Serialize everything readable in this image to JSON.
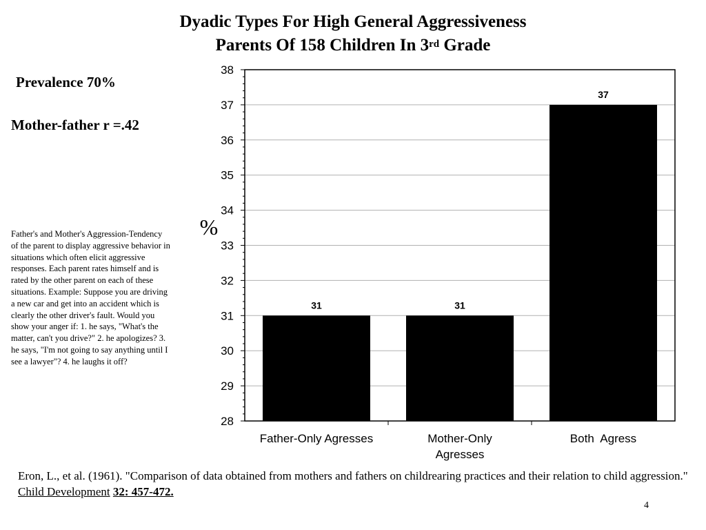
{
  "slide": {
    "title_line1": "Dyadic Types For High General Aggressiveness",
    "title_line2_main": "Parents Of 158 Children In 3",
    "title_line2_sup": "rd",
    "title_line2_end": " Grade",
    "prevalence": "Prevalence 70%",
    "correlation": "Mother-father r =.42",
    "description": "Father's and Mother's Aggression-Tendency of the parent to display aggressive behavior in situations which often elicit aggressive responses. Each parent rates himself and is rated by the other parent on each of these situations. Example: Suppose you are driving a new car and get into an accident which is clearly the other driver's fault. Would you show your anger if: 1. he says, \"What's the matter, can't you drive?\" 2. he apologizes? 3. he says, \"I'm not going to say anything until I see a lawyer\"? 4. he laughs it off?",
    "citation": {
      "text": "Eron, L., et al. (1961). \"Comparison of data obtained from mothers and fathers on childrearing practices and their relation to child aggression.\" ",
      "journal": "Child Development",
      "volume": "32: 457-472."
    },
    "page_number": "4"
  },
  "chart_data": {
    "type": "bar",
    "categories": [
      [
        "Father-Only Agresses"
      ],
      [
        "Mother-Only",
        "Agresses"
      ],
      [
        "Both  Agress"
      ]
    ],
    "values": [
      31,
      31,
      37
    ],
    "data_labels": [
      "31",
      "31",
      "37"
    ],
    "ylabel": "%",
    "ylim": [
      28,
      38
    ],
    "yticks": [
      28,
      29,
      30,
      31,
      32,
      33,
      34,
      35,
      36,
      37,
      38
    ],
    "grid": true,
    "bar_color": "#000000",
    "grid_color": "#b0b0b0"
  }
}
